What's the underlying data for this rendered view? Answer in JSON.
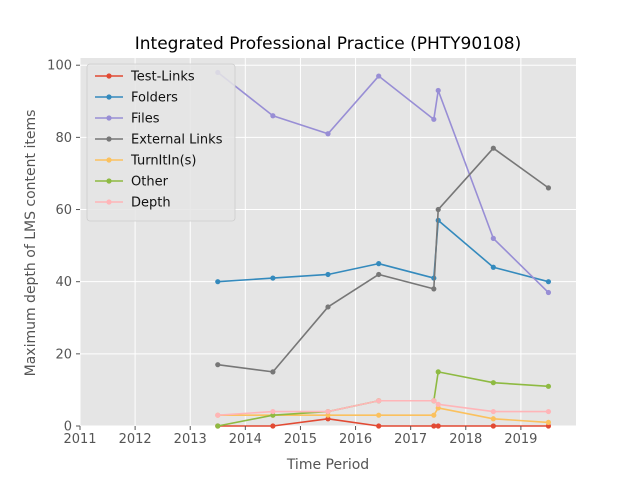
{
  "chart_data": {
    "type": "line",
    "title": "Integrated Professional Practice (PHTY90108)",
    "xlabel": "Time Period",
    "ylabel": "Maximum depth of LMS content items",
    "xlim": [
      2011,
      2020
    ],
    "ylim": [
      0,
      102
    ],
    "xticks": [
      2011,
      2012,
      2013,
      2014,
      2015,
      2016,
      2017,
      2018,
      2019
    ],
    "yticks": [
      0,
      20,
      40,
      60,
      80,
      100
    ],
    "grid": true,
    "legend_position": "top-left",
    "x": [
      2013.5,
      2014.5,
      2015.5,
      2016.42,
      2017.42,
      2017.5,
      2018.5,
      2019.5
    ],
    "series": [
      {
        "name": "Test-Links",
        "color": "#E24A33",
        "values": [
          0,
          0,
          2,
          0,
          0,
          0,
          0,
          0
        ]
      },
      {
        "name": "Folders",
        "color": "#348ABD",
        "values": [
          40,
          41,
          42,
          45,
          41,
          57,
          44,
          40
        ]
      },
      {
        "name": "Files",
        "color": "#988ED5",
        "values": [
          98,
          86,
          81,
          97,
          85,
          93,
          52,
          37
        ]
      },
      {
        "name": "External Links",
        "color": "#777777",
        "values": [
          17,
          15,
          33,
          42,
          38,
          60,
          77,
          66
        ]
      },
      {
        "name": "TurnItIn(s)",
        "color": "#FBC15E",
        "values": [
          3,
          3,
          3,
          3,
          3,
          5,
          2,
          1
        ]
      },
      {
        "name": "Other",
        "color": "#8EBA42",
        "values": [
          0,
          3,
          4,
          7,
          7,
          15,
          12,
          11
        ]
      },
      {
        "name": "Depth",
        "color": "#FFB5B8",
        "values": [
          3,
          4,
          4,
          7,
          7,
          6,
          4,
          4
        ]
      }
    ]
  }
}
